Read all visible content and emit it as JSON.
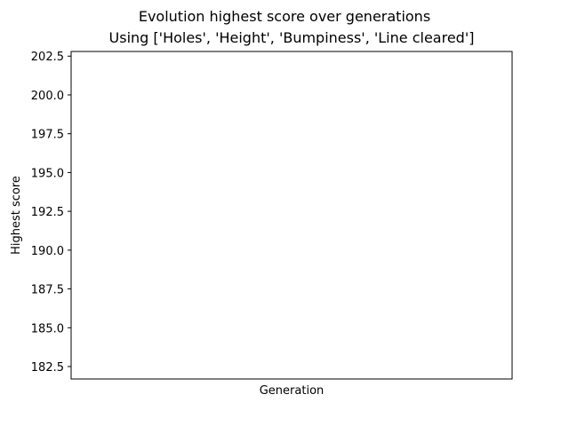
{
  "chart_data": {
    "type": "line",
    "title": "Evolution highest score over generations",
    "subtitle": "Using ['Holes', 'Height', 'Bumpiness', 'Line cleared']",
    "xlabel": "Generation",
    "ylabel": "Highest score",
    "ylim": [
      181.7,
      202.8
    ],
    "yticks": [
      182.5,
      185.0,
      187.5,
      190.0,
      192.5,
      195.0,
      197.5,
      200.0,
      202.5
    ],
    "ytick_labels": [
      "182.5",
      "185.0",
      "187.5",
      "190.0",
      "192.5",
      "195.0",
      "197.5",
      "200.0",
      "202.5"
    ],
    "xticks": [],
    "grid": false,
    "series": [
      {
        "values": []
      }
    ]
  }
}
